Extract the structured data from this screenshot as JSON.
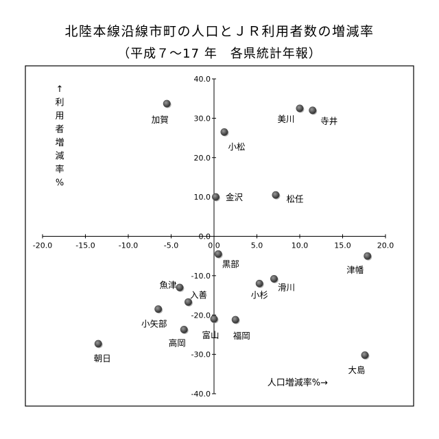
{
  "chart_data": {
    "type": "scatter",
    "title": "北陸本線沿線市町の人口とＪＲ利用者数の増減率",
    "subtitle": "（平成７～17 年　各県統計年報）",
    "xlabel": "人口増減率%→",
    "ylabel": [
      "↑",
      "利",
      "用",
      "者",
      "増",
      "減",
      "率",
      "%"
    ],
    "xlim": [
      -20,
      20
    ],
    "ylim": [
      -40,
      40
    ],
    "xticks": [
      -20,
      -15,
      -10,
      -5,
      0,
      5,
      10,
      15,
      20
    ],
    "yticks": [
      40,
      30,
      20,
      10,
      0,
      -10,
      -20,
      -30,
      -40
    ],
    "xtick_labels": [
      "-20.0",
      "-15.0",
      "-10.0",
      "-5.0",
      "0.0",
      "5.0",
      "10.0",
      "15.0",
      "20.0"
    ],
    "ytick_labels": [
      "40.0",
      "30.0",
      "20.0",
      "10.0",
      "0.0",
      "-10.0",
      "-20.0",
      "-30.0",
      "-40.0"
    ],
    "grid": false,
    "marker_color": "#4a4a4a",
    "points": [
      {
        "label": "加賀",
        "x": -5.5,
        "y": 33.7
      },
      {
        "label": "美川",
        "x": 10.0,
        "y": 32.5
      },
      {
        "label": "寺井",
        "x": 11.5,
        "y": 32.0
      },
      {
        "label": "小松",
        "x": 1.2,
        "y": 26.5
      },
      {
        "label": "金沢",
        "x": 0.2,
        "y": 10.0
      },
      {
        "label": "松任",
        "x": 7.2,
        "y": 10.5
      },
      {
        "label": "黒部",
        "x": 0.5,
        "y": -4.5
      },
      {
        "label": "津幡",
        "x": 17.9,
        "y": -5.0
      },
      {
        "label": "滑川",
        "x": 7.0,
        "y": -10.8
      },
      {
        "label": "小杉",
        "x": 5.3,
        "y": -12.0
      },
      {
        "label": "魚津",
        "x": -4.0,
        "y": -13.0
      },
      {
        "label": "入善",
        "x": -3.0,
        "y": -16.7
      },
      {
        "label": "小矢部",
        "x": -6.5,
        "y": -18.5
      },
      {
        "label": "富山",
        "x": 0.0,
        "y": -21.0
      },
      {
        "label": "福岡",
        "x": 2.5,
        "y": -21.2
      },
      {
        "label": "高岡",
        "x": -3.5,
        "y": -23.7
      },
      {
        "label": "朝日",
        "x": -13.5,
        "y": -27.3
      },
      {
        "label": "大島",
        "x": 17.6,
        "y": -30.2
      }
    ]
  }
}
